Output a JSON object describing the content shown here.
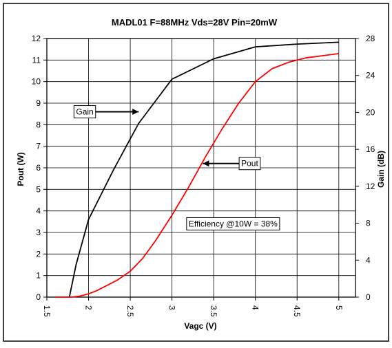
{
  "chart_data": {
    "type": "line",
    "title": "MADL01 F=88MHz Vds=28V Pin=20mW",
    "xlabel": "Vagc (V)",
    "ylabel": "Pout (W)",
    "y2label": "Gain (dB)",
    "xlim": [
      1.5,
      5.2
    ],
    "ylim": [
      0,
      12
    ],
    "y2lim": [
      0,
      28
    ],
    "x_ticks": [
      "1.5",
      "2",
      "2.5",
      "3",
      "3.5",
      "4",
      "4.5",
      "5"
    ],
    "x_tick_values": [
      1.5,
      2,
      2.5,
      3,
      3.5,
      4,
      4.5,
      5
    ],
    "y_ticks": [
      "0",
      "1",
      "2",
      "3",
      "4",
      "5",
      "6",
      "7",
      "8",
      "9",
      "10",
      "11",
      "12"
    ],
    "y2_ticks": [
      "0",
      "4",
      "8",
      "12",
      "16",
      "20",
      "24",
      "28"
    ],
    "grid": true,
    "series": [
      {
        "name": "Gain",
        "axis": "right",
        "color": "#000000",
        "points": [
          [
            1.77,
            0
          ],
          [
            1.85,
            3.5
          ],
          [
            2.0,
            8.4
          ],
          [
            2.3,
            13.8
          ],
          [
            2.6,
            18.8
          ],
          [
            3.0,
            23.6
          ],
          [
            3.5,
            25.8
          ],
          [
            4.0,
            27.1
          ],
          [
            4.5,
            27.4
          ],
          [
            5.0,
            27.6
          ]
        ]
      },
      {
        "name": "Pout",
        "axis": "left",
        "color": "#ff0000",
        "points": [
          [
            1.6,
            0
          ],
          [
            1.8,
            0
          ],
          [
            1.9,
            0.05
          ],
          [
            2.0,
            0.15
          ],
          [
            2.1,
            0.3
          ],
          [
            2.2,
            0.5
          ],
          [
            2.35,
            0.8
          ],
          [
            2.5,
            1.2
          ],
          [
            2.65,
            1.8
          ],
          [
            2.8,
            2.6
          ],
          [
            3.0,
            3.8
          ],
          [
            3.2,
            5.1
          ],
          [
            3.4,
            6.5
          ],
          [
            3.6,
            7.8
          ],
          [
            3.8,
            9.0
          ],
          [
            4.0,
            10.0
          ],
          [
            4.2,
            10.6
          ],
          [
            4.4,
            10.9
          ],
          [
            4.6,
            11.1
          ],
          [
            4.8,
            11.2
          ],
          [
            5.0,
            11.3
          ]
        ]
      }
    ],
    "annotations": [
      {
        "id": "gain",
        "text": "Gain",
        "box_anchor": [
          1.85,
          8.6
        ],
        "arrow_to": [
          2.6,
          8.6
        ]
      },
      {
        "id": "pout",
        "text": "Pout",
        "box_anchor": [
          3.83,
          6.2
        ],
        "arrow_to": [
          3.37,
          6.2
        ]
      },
      {
        "id": "efficiency",
        "text": "Efficiency @10W = 38%",
        "box_anchor": [
          3.2,
          3.4
        ],
        "arrow_to": null
      }
    ]
  }
}
